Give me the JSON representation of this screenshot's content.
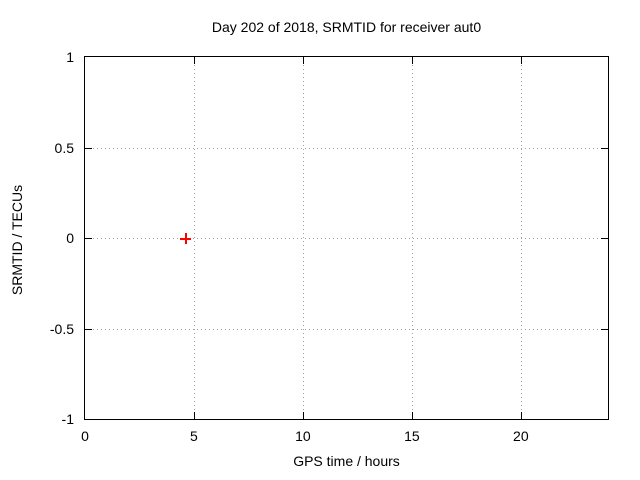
{
  "chart_data": {
    "type": "scatter",
    "title": "Day 202 of 2018, SRMTID for receiver aut0",
    "xlabel": "GPS time / hours",
    "ylabel": "SRMTID / TECUs",
    "xlim": [
      0,
      24
    ],
    "ylim": [
      -1,
      1
    ],
    "grid": true,
    "legend_position": "none",
    "xticks": [
      {
        "value": 0,
        "label": "0"
      },
      {
        "value": 5,
        "label": "5"
      },
      {
        "value": 10,
        "label": "10"
      },
      {
        "value": 15,
        "label": "15"
      },
      {
        "value": 20,
        "label": "20"
      }
    ],
    "yticks": [
      {
        "value": 1,
        "label": "1"
      },
      {
        "value": 0.5,
        "label": "0.5"
      },
      {
        "value": 0,
        "label": "0"
      },
      {
        "value": -0.5,
        "label": "-0.5"
      },
      {
        "value": -1,
        "label": "-1"
      }
    ],
    "series": [
      {
        "name": "SRMTID",
        "marker": "plus",
        "color": "#ff0000",
        "points": [
          {
            "x": 4.6,
            "y": 0.0
          }
        ]
      }
    ]
  },
  "colors": {
    "background": "#ffffff",
    "axis": "#000000",
    "grid": "#a0a0a0",
    "text": "#000000",
    "marker": "#ff0000"
  }
}
